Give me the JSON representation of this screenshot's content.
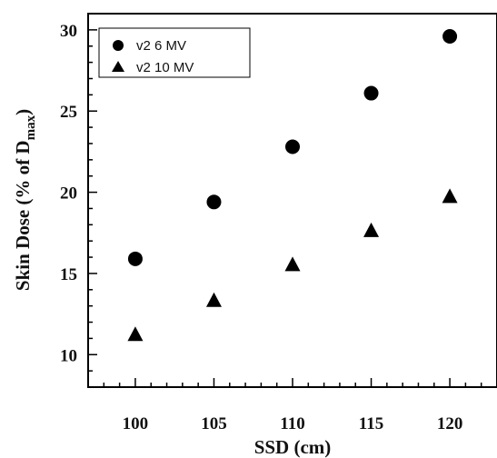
{
  "chart_data": {
    "type": "scatter",
    "xlabel": "SSD (cm)",
    "ylabel_main": "Skin Dose (% of D",
    "ylabel_sub": "max",
    "ylabel_close": ")",
    "xlim": [
      97,
      123
    ],
    "ylim": [
      8,
      31
    ],
    "x_ticks": [
      100,
      105,
      110,
      115,
      120
    ],
    "y_ticks": [
      10,
      15,
      20,
      25,
      30
    ],
    "grid": false,
    "legend_position": "top-left",
    "series": [
      {
        "name": "v2 6 MV",
        "marker": "circle",
        "color": "#000000",
        "x": [
          100,
          105,
          110,
          115,
          120
        ],
        "y": [
          15.9,
          19.4,
          22.8,
          26.1,
          29.6
        ]
      },
      {
        "name": "v2 10 MV",
        "marker": "triangle",
        "color": "#000000",
        "x": [
          100,
          105,
          110,
          115,
          120
        ],
        "y": [
          11.2,
          13.3,
          15.5,
          17.6,
          19.7
        ]
      }
    ]
  }
}
